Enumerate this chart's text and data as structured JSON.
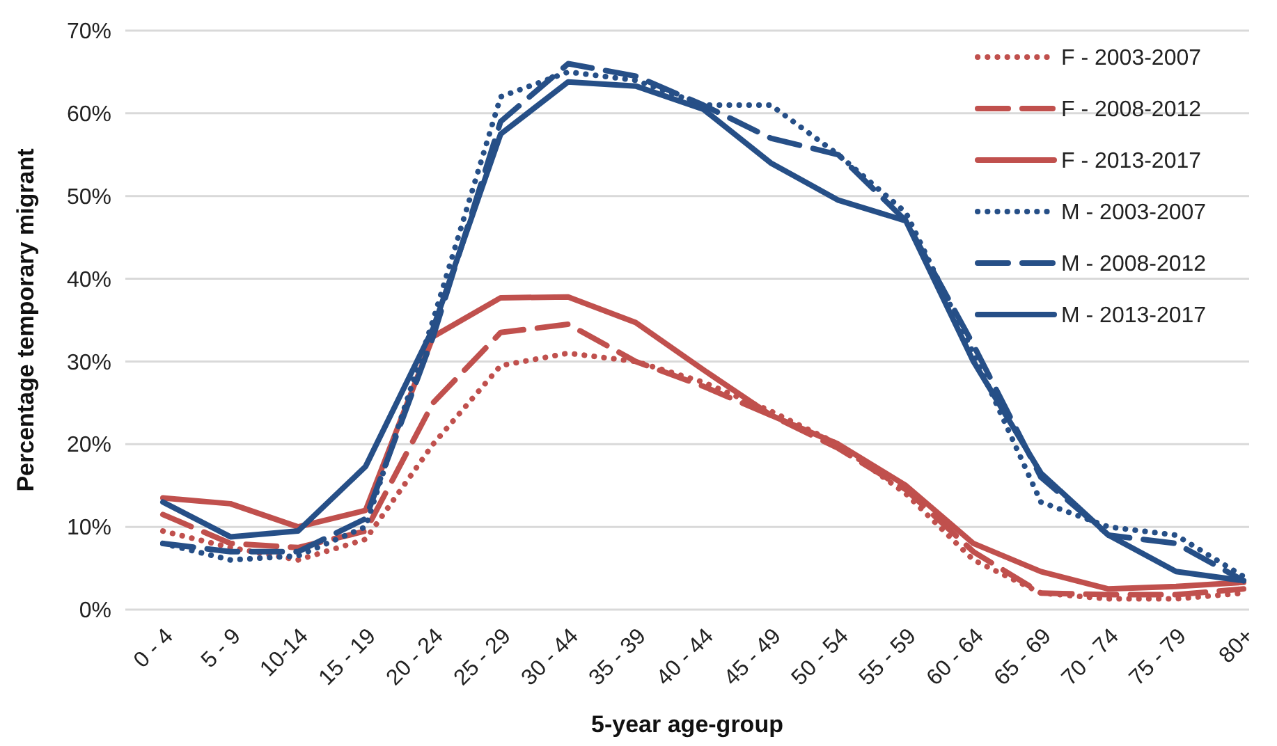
{
  "chart_data": {
    "type": "line",
    "xlabel": "5-year age-group",
    "ylabel": "Percentage temporary migrant",
    "categories": [
      "0 - 4",
      "5 - 9",
      "10-14",
      "15 - 19",
      "20 - 24",
      "25 - 29",
      "30 - 44",
      "35 - 39",
      "40 - 44",
      "45 - 49",
      "50 - 54",
      "55 - 59",
      "60 - 64",
      "65 - 69",
      "70 - 74",
      "75 - 79",
      "80+"
    ],
    "series": [
      {
        "name": "F - 2003-2007",
        "color": "#c0504d",
        "line_style": "dotted",
        "values": [
          9.5,
          7.5,
          6,
          8.5,
          20,
          29.5,
          31,
          30,
          27.5,
          24,
          20,
          14,
          6,
          2,
          1.3,
          1.3,
          2
        ]
      },
      {
        "name": "F - 2008-2012",
        "color": "#c0504d",
        "line_style": "dashed",
        "values": [
          11.5,
          8,
          7.5,
          9.5,
          25,
          33.5,
          34.5,
          30,
          27,
          23.5,
          19.5,
          14.5,
          7,
          2,
          1.8,
          1.8,
          2.5
        ]
      },
      {
        "name": "F - 2013-2017",
        "color": "#c0504d",
        "line_style": "solid",
        "values": [
          13.5,
          12.8,
          10,
          12,
          33,
          37.7,
          37.8,
          34.7,
          29,
          23.5,
          20,
          15,
          8,
          4.6,
          2.5,
          2.8,
          3.3
        ]
      },
      {
        "name": "M - 2003-2007",
        "color": "#264f87",
        "line_style": "dotted",
        "values": [
          8,
          6,
          6.5,
          10,
          35,
          62,
          65,
          64,
          61,
          61,
          55,
          48,
          31,
          13,
          10,
          9,
          4
        ]
      },
      {
        "name": "M - 2008-2012",
        "color": "#264f87",
        "line_style": "dashed",
        "values": [
          8,
          7,
          7,
          11,
          33,
          59,
          66,
          64.5,
          61,
          57,
          55,
          47,
          32,
          16,
          9,
          8,
          3.5
        ]
      },
      {
        "name": "M - 2013-2017",
        "color": "#264f87",
        "line_style": "solid",
        "values": [
          13,
          8.8,
          9.5,
          17.3,
          34,
          57.5,
          63.8,
          63.3,
          60.5,
          54,
          49.5,
          47,
          30,
          16.5,
          9,
          4.6,
          3.5
        ]
      }
    ],
    "ylim": [
      0,
      70
    ],
    "yticks": [
      {
        "value": 0,
        "label": "0%"
      },
      {
        "value": 10,
        "label": "10%"
      },
      {
        "value": 20,
        "label": "20%"
      },
      {
        "value": 30,
        "label": "30%"
      },
      {
        "value": 40,
        "label": "40%"
      },
      {
        "value": 50,
        "label": "50%"
      },
      {
        "value": 60,
        "label": "60%"
      },
      {
        "value": 70,
        "label": "70%"
      }
    ],
    "grid": "y",
    "legend": "top right",
    "marker": "none"
  }
}
